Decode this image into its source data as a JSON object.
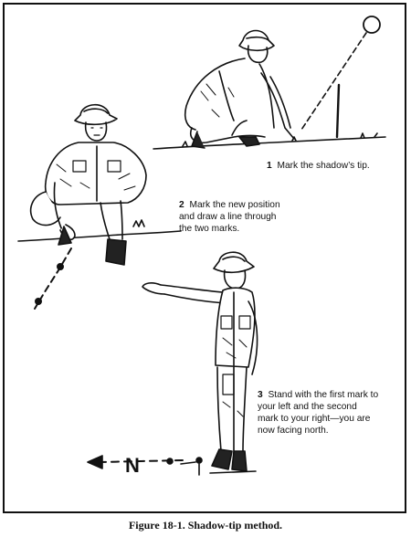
{
  "steps": [
    {
      "number": "1",
      "text": "Mark the shadow’s tip."
    },
    {
      "number": "2",
      "text": "Mark the new position\nand draw a line through\nthe two marks."
    },
    {
      "number": "3",
      "text": "Stand with the first mark to\nyour left and the second\nmark to your right—you are\nnow facing north."
    }
  ],
  "compass_letter": "N",
  "caption": "Figure 18-1. Shadow-tip method."
}
